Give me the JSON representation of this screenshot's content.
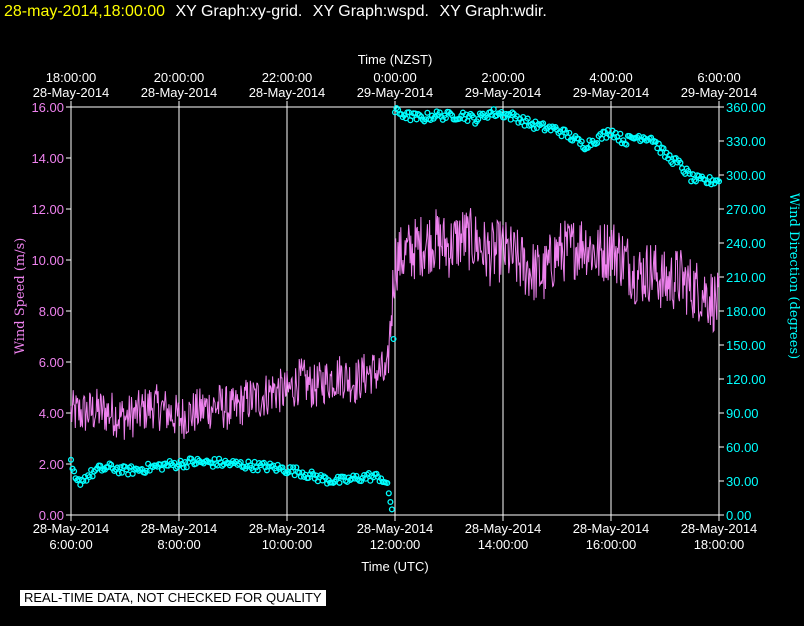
{
  "header": {
    "timestamp": "28-may-2014,18:00:00",
    "graphs": [
      "XY Graph:xy-grid.",
      "XY Graph:wspd.",
      "XY Graph:wdir."
    ]
  },
  "quality_notice": "REAL-TIME DATA, NOT CHECKED FOR QUALITY",
  "colors": {
    "background": "#000000",
    "frame": "#ffffff",
    "grid": "#ffffff",
    "wind_speed": "#ee82ee",
    "wind_direction": "#00ffff",
    "timestamp": "#ffff00"
  },
  "chart_data": {
    "type": "line",
    "top_axis": {
      "label": "Time (NZST)",
      "ticks": [
        {
          "time": "18:00:00",
          "date": "28-May-2014"
        },
        {
          "time": "20:00:00",
          "date": "28-May-2014"
        },
        {
          "time": "22:00:00",
          "date": "28-May-2014"
        },
        {
          "time": "0:00:00",
          "date": "29-May-2014"
        },
        {
          "time": "2:00:00",
          "date": "29-May-2014"
        },
        {
          "time": "4:00:00",
          "date": "29-May-2014"
        },
        {
          "time": "6:00:00",
          "date": "29-May-2014"
        }
      ]
    },
    "bottom_axis": {
      "label": "Time (UTC)",
      "ticks": [
        {
          "time": "6:00:00",
          "date": "28-May-2014"
        },
        {
          "time": "8:00:00",
          "date": "28-May-2014"
        },
        {
          "time": "10:00:00",
          "date": "28-May-2014"
        },
        {
          "time": "12:00:00",
          "date": "28-May-2014"
        },
        {
          "time": "14:00:00",
          "date": "28-May-2014"
        },
        {
          "time": "16:00:00",
          "date": "28-May-2014"
        },
        {
          "time": "18:00:00",
          "date": "28-May-2014"
        }
      ],
      "range_hours_utc": [
        6,
        18
      ]
    },
    "left_axis": {
      "label": "Wind Speed (m/s)",
      "range": [
        0,
        16
      ],
      "ticks": [
        "0.00",
        "2.00",
        "4.00",
        "6.00",
        "8.00",
        "10.00",
        "12.00",
        "14.00",
        "16.00"
      ]
    },
    "right_axis": {
      "label": "Wind Direction (degrees)",
      "range": [
        0,
        360
      ],
      "ticks": [
        "0.00",
        "30.00",
        "60.00",
        "90.00",
        "120.00",
        "150.00",
        "180.00",
        "210.00",
        "240.00",
        "270.00",
        "300.00",
        "330.00",
        "360.00"
      ]
    },
    "grid": true,
    "series": [
      {
        "name": "wspd",
        "style": "line",
        "x_hours_utc": [
          6,
          6.25,
          6.5,
          6.75,
          7,
          7.25,
          7.5,
          7.75,
          8,
          8.25,
          8.5,
          8.75,
          9,
          9.25,
          9.5,
          9.75,
          10,
          10.25,
          10.5,
          10.75,
          11,
          11.25,
          11.5,
          11.75,
          11.85,
          12,
          12.25,
          12.5,
          12.75,
          13,
          13.25,
          13.5,
          13.75,
          14,
          14.25,
          14.5,
          14.75,
          15,
          15.25,
          15.5,
          15.75,
          16,
          16.25,
          16.5,
          16.75,
          17,
          17.25,
          17.5,
          17.75,
          18
        ],
        "values": [
          4.0,
          4.0,
          4.1,
          4.0,
          3.8,
          4.0,
          4.3,
          4.1,
          3.8,
          4.0,
          4.2,
          4.3,
          4.1,
          4.5,
          4.6,
          4.9,
          4.8,
          5.3,
          5.0,
          5.3,
          5.5,
          5.2,
          5.6,
          5.6,
          5.3,
          10.0,
          10.3,
          10.6,
          10.8,
          10.5,
          10.9,
          10.7,
          10.2,
          10.4,
          10.0,
          9.6,
          9.4,
          10.3,
          10.4,
          10.7,
          10.2,
          10.5,
          10.0,
          9.4,
          9.6,
          9.1,
          9.3,
          8.9,
          8.7,
          8.2
        ],
        "noise_amplitude": 0.9
      },
      {
        "name": "wdir",
        "style": "circles",
        "x_hours_utc": [
          6,
          6.1,
          6.5,
          6.75,
          7,
          7.25,
          7.5,
          7.75,
          8,
          8.25,
          8.5,
          8.75,
          9,
          9.25,
          9.5,
          9.75,
          10,
          10.25,
          10.5,
          10.75,
          11,
          11.25,
          11.5,
          11.75,
          11.85,
          11.95,
          12,
          12.25,
          12.5,
          12.75,
          13,
          13.25,
          13.5,
          13.75,
          14,
          14.25,
          14.5,
          14.75,
          15,
          15.25,
          15.5,
          15.75,
          16,
          16.25,
          16.5,
          16.75,
          17,
          17.25,
          17.5,
          17.75,
          18
        ],
        "values": [
          45,
          28,
          40,
          42,
          39,
          40,
          42,
          44,
          45,
          47,
          46,
          46,
          45,
          44,
          43,
          42,
          40,
          38,
          34,
          31,
          30,
          32,
          34,
          33,
          26,
          5,
          356,
          352,
          350,
          353,
          352,
          353,
          349,
          355,
          354,
          351,
          345,
          342,
          340,
          334,
          326,
          332,
          339,
          330,
          334,
          333,
          318,
          310,
          297,
          294,
          296
        ]
      }
    ]
  }
}
